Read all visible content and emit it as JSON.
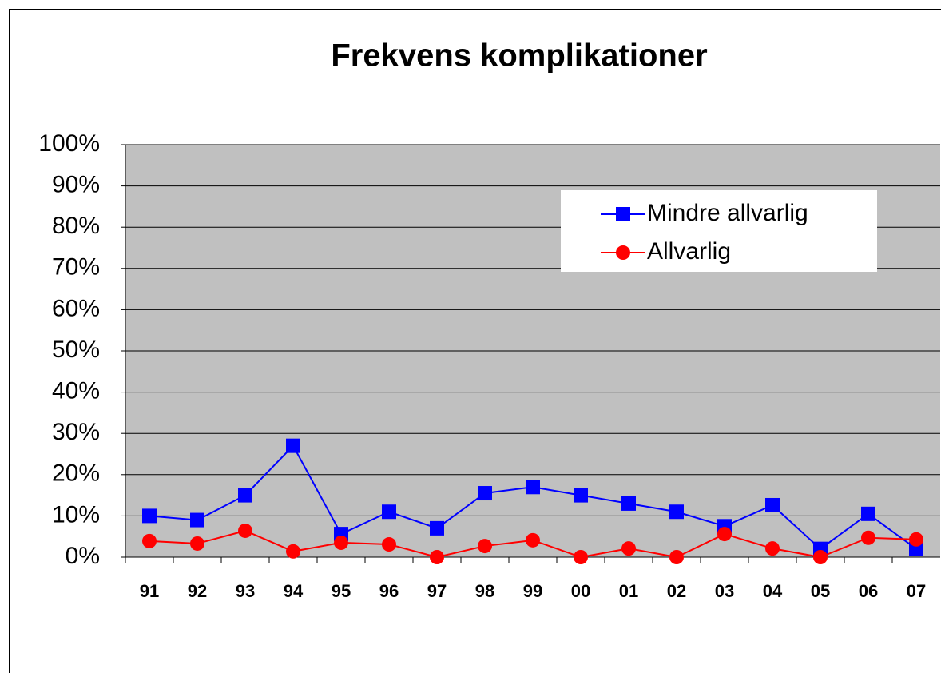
{
  "chart_data": {
    "type": "line",
    "title": "Frekvens komplikationer",
    "categories": [
      "91",
      "92",
      "93",
      "94",
      "95",
      "96",
      "97",
      "98",
      "99",
      "00",
      "01",
      "02",
      "03",
      "04",
      "05",
      "06",
      "07"
    ],
    "series": [
      {
        "name": "Mindre allvarlig",
        "color": "#0000ff",
        "marker": "square",
        "values": [
          10,
          9,
          15,
          27,
          5.6,
          11,
          7,
          15.5,
          17,
          15,
          13,
          11,
          7.5,
          12.6,
          2,
          10.5,
          2
        ]
      },
      {
        "name": "Allvarlig",
        "color": "#ff0000",
        "marker": "circle",
        "values": [
          3.9,
          3.3,
          6.4,
          1.4,
          3.5,
          3.1,
          0,
          2.7,
          4.1,
          0,
          2.1,
          0,
          5.6,
          2.1,
          0,
          4.7,
          4.3
        ]
      }
    ],
    "ylim": [
      0,
      100
    ],
    "yticks": [
      {
        "value": 0,
        "label": "0%"
      },
      {
        "value": 10,
        "label": "10%"
      },
      {
        "value": 20,
        "label": "20%"
      },
      {
        "value": 30,
        "label": "30%"
      },
      {
        "value": 40,
        "label": "40%"
      },
      {
        "value": 50,
        "label": "50%"
      },
      {
        "value": 60,
        "label": "60%"
      },
      {
        "value": 70,
        "label": "70%"
      },
      {
        "value": 80,
        "label": "80%"
      },
      {
        "value": 90,
        "label": "90%"
      },
      {
        "value": 100,
        "label": "100%"
      }
    ],
    "grid": true,
    "plot_background": "#c0c0c0",
    "legend": "upper right"
  }
}
